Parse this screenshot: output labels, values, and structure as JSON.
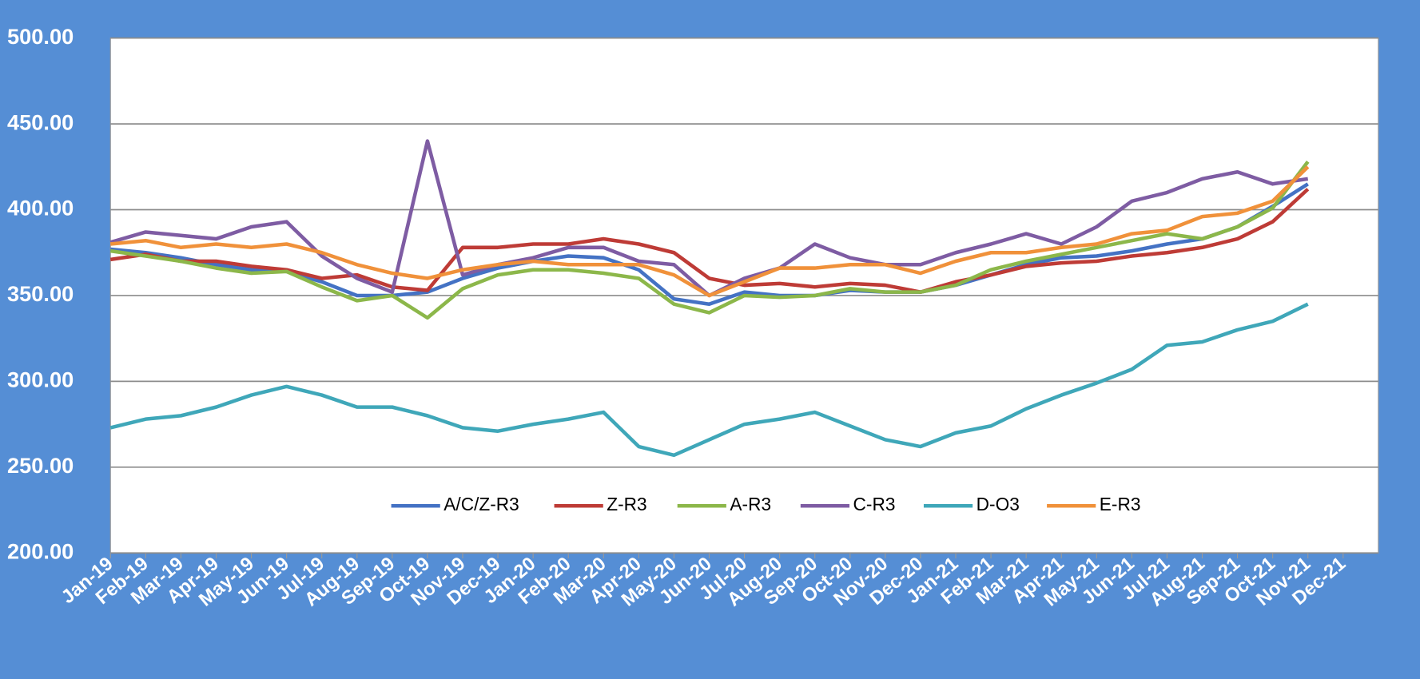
{
  "chart_data": {
    "type": "line",
    "categories": [
      "Jan-19",
      "Feb-19",
      "Mar-19",
      "Apr-19",
      "May-19",
      "Jun-19",
      "Jul-19",
      "Aug-19",
      "Sep-19",
      "Oct-19",
      "Nov-19",
      "Dec-19",
      "Jan-20",
      "Feb-20",
      "Mar-20",
      "Apr-20",
      "May-20",
      "Jun-20",
      "Jul-20",
      "Aug-20",
      "Sep-20",
      "Oct-20",
      "Nov-20",
      "Dec-20",
      "Jan-21",
      "Feb-21",
      "Mar-21",
      "Apr-21",
      "May-21",
      "Jun-21",
      "Jul-21",
      "Aug-21",
      "Sep-21",
      "Oct-21",
      "Nov-21",
      "Dec-21"
    ],
    "ylim": [
      200,
      500
    ],
    "yticks": [
      {
        "value": 200,
        "label": "200.00"
      },
      {
        "value": 250,
        "label": "250.00"
      },
      {
        "value": 300,
        "label": "300.00"
      },
      {
        "value": 350,
        "label": "350.00"
      },
      {
        "value": 400,
        "label": "400.00"
      },
      {
        "value": 450,
        "label": "450.00"
      },
      {
        "value": 500,
        "label": "500.00"
      }
    ],
    "grid": true,
    "legend": "bottom",
    "series": [
      {
        "name": "A/C/Z-R3",
        "color": "#4472c4",
        "values": [
          377,
          375,
          372,
          368,
          365,
          364,
          358,
          350,
          350,
          352,
          360,
          366,
          370,
          373,
          372,
          365,
          348,
          345,
          352,
          350,
          350,
          353,
          352,
          352,
          356,
          362,
          368,
          372,
          373,
          376,
          380,
          383,
          390,
          402,
          415,
          null
        ]
      },
      {
        "name": "Z-R3",
        "color": "#be3b36",
        "values": [
          371,
          374,
          370,
          370,
          367,
          365,
          360,
          362,
          355,
          353,
          378,
          378,
          380,
          380,
          383,
          380,
          375,
          360,
          356,
          357,
          355,
          357,
          356,
          352,
          358,
          362,
          367,
          369,
          370,
          373,
          375,
          378,
          383,
          393,
          412,
          null
        ]
      },
      {
        "name": "A-R3",
        "color": "#8cb74a",
        "values": [
          376,
          373,
          370,
          366,
          363,
          364,
          355,
          347,
          350,
          337,
          354,
          362,
          365,
          365,
          363,
          360,
          345,
          340,
          350,
          349,
          350,
          354,
          352,
          352,
          356,
          365,
          370,
          374,
          378,
          382,
          386,
          383,
          390,
          401,
          428,
          null
        ]
      },
      {
        "name": "C-R3",
        "color": "#7e5ca3",
        "values": [
          381,
          387,
          385,
          383,
          390,
          393,
          373,
          360,
          352,
          440,
          362,
          368,
          372,
          378,
          378,
          370,
          368,
          350,
          360,
          366,
          380,
          372,
          368,
          368,
          375,
          380,
          386,
          380,
          390,
          405,
          410,
          418,
          422,
          415,
          418,
          null
        ]
      },
      {
        "name": "D-O3",
        "color": "#3fa7b9",
        "values": [
          273,
          278,
          280,
          285,
          292,
          297,
          292,
          285,
          285,
          280,
          273,
          271,
          275,
          278,
          282,
          262,
          257,
          266,
          275,
          278,
          282,
          274,
          266,
          262,
          270,
          274,
          284,
          292,
          299,
          307,
          321,
          323,
          330,
          335,
          345,
          null
        ]
      },
      {
        "name": "E-R3",
        "color": "#f0913a",
        "values": [
          380,
          382,
          378,
          380,
          378,
          380,
          375,
          368,
          363,
          360,
          365,
          368,
          370,
          368,
          368,
          368,
          362,
          350,
          358,
          366,
          366,
          368,
          368,
          363,
          370,
          375,
          375,
          378,
          380,
          386,
          388,
          396,
          398,
          405,
          425,
          null
        ]
      }
    ]
  }
}
